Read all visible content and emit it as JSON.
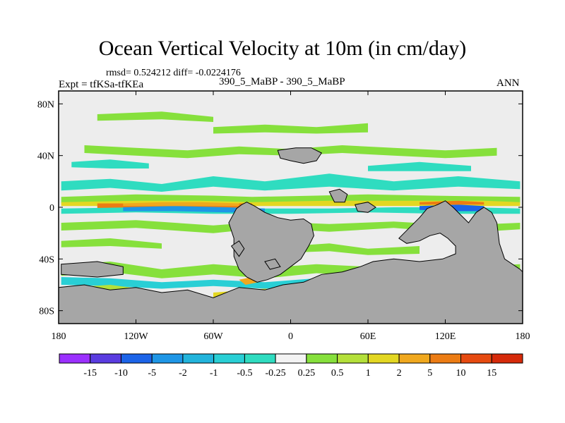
{
  "header": {
    "title": "Ocean Vertical Velocity at 10m (in cm/day)",
    "stats": "rmsd= 0.524212 diff= -0.0224176",
    "experiment": "Expt = tfKSa-tfKEa",
    "case": "390_5_MaBP - 390_5_MaBP",
    "season": "ANN"
  },
  "chart_data": {
    "type": "heatmap",
    "title": "Ocean Vertical Velocity at 10m (in cm/day)",
    "projection": "cylindrical equidistant",
    "xlim": [
      -180,
      180
    ],
    "ylim": [
      -90,
      90
    ],
    "x_ticks": [
      {
        "value": -180,
        "label": "180"
      },
      {
        "value": -120,
        "label": "120W"
      },
      {
        "value": -60,
        "label": "60W"
      },
      {
        "value": 0,
        "label": "0"
      },
      {
        "value": 60,
        "label": "60E"
      },
      {
        "value": 120,
        "label": "120E"
      },
      {
        "value": 180,
        "label": "180"
      }
    ],
    "y_ticks": [
      {
        "value": 80,
        "label": "80N"
      },
      {
        "value": 40,
        "label": "40N"
      },
      {
        "value": 0,
        "label": "0"
      },
      {
        "value": -40,
        "label": "40S"
      },
      {
        "value": -80,
        "label": "80S"
      }
    ],
    "colorbar": {
      "levels": [
        "-15",
        "-10",
        "-5",
        "-2",
        "-1",
        "-0.5",
        "-0.25",
        "0.25",
        "0.5",
        "1",
        "2",
        "5",
        "10",
        "15"
      ],
      "colors": [
        "#9b30ff",
        "#5a3ce0",
        "#1c64e8",
        "#1e96e6",
        "#22b4dc",
        "#29cfd5",
        "#2fdcc0",
        "#f3f3f3",
        "#86e03c",
        "#b4e03a",
        "#e3d722",
        "#f0a81e",
        "#ec7c14",
        "#e64a10",
        "#d62a0a"
      ]
    },
    "land_color": "#a6a6a6",
    "background_color": "#ededed"
  }
}
